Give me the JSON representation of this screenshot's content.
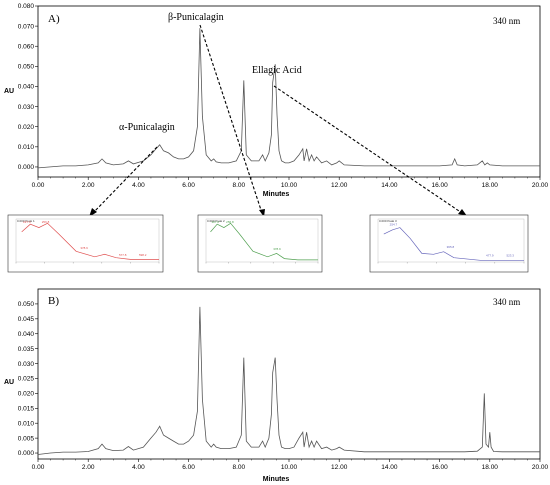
{
  "chart_data": [
    {
      "type": "line",
      "panel_label": "A)",
      "wavelength": "340 nm",
      "xlabel": "Minutes",
      "ylabel": "AU",
      "xlim": [
        0,
        20
      ],
      "ylim": [
        -0.005,
        0.08
      ],
      "x_ticks": [
        "0.00",
        "2.00",
        "4.00",
        "6.00",
        "8.00",
        "10.00",
        "12.00",
        "14.00",
        "16.00",
        "18.00",
        "20.00"
      ],
      "y_ticks": [
        "0.000",
        "0.010",
        "0.020",
        "0.030",
        "0.040",
        "0.050",
        "0.060",
        "0.070",
        "0.080"
      ],
      "series": [
        {
          "x": [
            0.0,
            0.5,
            1.0,
            1.5,
            2.0,
            2.4,
            2.55,
            2.7,
            3.0,
            3.4,
            3.6,
            3.8,
            4.2,
            4.5,
            4.7,
            4.85,
            5.0,
            5.2,
            5.4,
            5.6,
            5.8,
            6.0,
            6.2,
            6.35,
            6.45,
            6.55,
            6.7,
            6.9,
            7.0,
            7.1,
            7.3,
            7.6,
            7.9,
            8.1,
            8.2,
            8.3,
            8.5,
            8.8,
            8.95,
            9.05,
            9.2,
            9.3,
            9.35,
            9.45,
            9.52,
            9.6,
            9.7,
            9.85,
            10.0,
            10.2,
            10.4,
            10.55,
            10.6,
            10.7,
            10.8,
            10.9,
            11.0,
            11.1,
            11.3,
            11.5,
            11.7,
            11.9,
            12.0,
            12.2,
            13.0,
            14.0,
            15.0,
            16.0,
            16.5,
            16.6,
            16.7,
            17.0,
            17.5,
            17.7,
            17.8,
            17.9,
            18.0,
            18.5,
            19.0,
            19.5,
            20.0
          ],
          "y": [
            -0.0005,
            0.0,
            0.0005,
            0.0005,
            0.001,
            0.002,
            0.004,
            0.002,
            0.001,
            0.0015,
            0.003,
            0.0015,
            0.003,
            0.006,
            0.009,
            0.011,
            0.008,
            0.007,
            0.005,
            0.004,
            0.004,
            0.005,
            0.008,
            0.02,
            0.069,
            0.025,
            0.006,
            0.003,
            0.004,
            0.0025,
            0.002,
            0.002,
            0.003,
            0.008,
            0.043,
            0.006,
            0.003,
            0.003,
            0.006,
            0.003,
            0.007,
            0.016,
            0.042,
            0.051,
            0.026,
            0.008,
            0.003,
            0.002,
            0.002,
            0.003,
            0.006,
            0.009,
            0.003,
            0.009,
            0.003,
            0.006,
            0.003,
            0.005,
            0.002,
            0.003,
            0.001,
            0.002,
            0.003,
            0.001,
            0.0005,
            0.0005,
            0.0005,
            0.0005,
            0.001,
            0.004,
            0.001,
            0.0005,
            0.001,
            0.003,
            0.001,
            0.002,
            0.001,
            0.0005,
            0.0005,
            0.0005,
            0.0005
          ]
        }
      ],
      "annotations": [
        "β-Punicalagin",
        "Ellagic Acid",
        "α-Punicalagin"
      ]
    },
    {
      "type": "line",
      "panel_label": "B)",
      "wavelength": "340 nm",
      "xlabel": "Minutes",
      "ylabel": "AU",
      "xlim": [
        0,
        20
      ],
      "ylim": [
        -0.002,
        0.055
      ],
      "x_ticks": [
        "0.00",
        "2.00",
        "4.00",
        "6.00",
        "8.00",
        "10.00",
        "12.00",
        "14.00",
        "16.00",
        "18.00",
        "20.00"
      ],
      "y_ticks": [
        "0.000",
        "0.005",
        "0.010",
        "0.015",
        "0.020",
        "0.025",
        "0.030",
        "0.035",
        "0.040",
        "0.045",
        "0.050"
      ],
      "series": [
        {
          "x": [
            0.0,
            0.5,
            1.0,
            1.5,
            2.0,
            2.4,
            2.55,
            2.7,
            3.0,
            3.4,
            3.6,
            3.8,
            4.2,
            4.5,
            4.7,
            4.85,
            5.0,
            5.2,
            5.4,
            5.6,
            5.8,
            6.0,
            6.2,
            6.35,
            6.45,
            6.55,
            6.7,
            6.9,
            7.0,
            7.1,
            7.3,
            7.6,
            7.9,
            8.1,
            8.2,
            8.3,
            8.5,
            8.8,
            8.95,
            9.05,
            9.2,
            9.3,
            9.35,
            9.45,
            9.52,
            9.6,
            9.7,
            9.85,
            10.0,
            10.2,
            10.4,
            10.55,
            10.6,
            10.7,
            10.8,
            10.9,
            11.0,
            11.1,
            11.3,
            11.5,
            11.7,
            11.9,
            12.0,
            12.2,
            13.0,
            14.0,
            15.0,
            16.0,
            17.0,
            17.5,
            17.7,
            17.78,
            17.85,
            17.95,
            18.0,
            18.05,
            18.15,
            18.5,
            19.0,
            19.5,
            20.0
          ],
          "y": [
            -0.0005,
            0.0,
            0.0003,
            0.0003,
            0.0005,
            0.0015,
            0.003,
            0.0015,
            0.0008,
            0.001,
            0.0022,
            0.001,
            0.002,
            0.005,
            0.007,
            0.009,
            0.006,
            0.005,
            0.004,
            0.003,
            0.003,
            0.004,
            0.006,
            0.014,
            0.049,
            0.018,
            0.004,
            0.002,
            0.003,
            0.002,
            0.0015,
            0.0015,
            0.002,
            0.006,
            0.032,
            0.004,
            0.002,
            0.002,
            0.004,
            0.002,
            0.005,
            0.013,
            0.027,
            0.032,
            0.018,
            0.006,
            0.002,
            0.0015,
            0.0015,
            0.002,
            0.005,
            0.007,
            0.002,
            0.007,
            0.002,
            0.004,
            0.002,
            0.004,
            0.0015,
            0.002,
            0.001,
            0.0015,
            0.002,
            0.001,
            0.0004,
            0.0004,
            0.0004,
            0.0004,
            0.0004,
            0.0006,
            0.002,
            0.02,
            0.003,
            0.002,
            0.007,
            0.002,
            0.0005,
            0.0004,
            0.0004,
            0.0004,
            0.0004
          ]
        }
      ]
    }
  ],
  "insets": [
    {
      "color": "#e05050",
      "title": "0.000 Peak 1",
      "peak_labels": [
        "227.0",
        "256.8",
        "378.9",
        "577.8",
        "598.2"
      ]
    },
    {
      "color": "#50a050",
      "title": "0.000 Peak 2",
      "peak_labels": [
        "227.0",
        "256.8",
        "378.9"
      ]
    },
    {
      "color": "#6666bb",
      "title": "0.000 Peak 3",
      "peak_labels": [
        "254.7",
        "365.8",
        "477.9",
        "523.3"
      ]
    }
  ],
  "colors": {
    "trace": "#555555",
    "arrow": "#000000",
    "axis": "#000000"
  }
}
